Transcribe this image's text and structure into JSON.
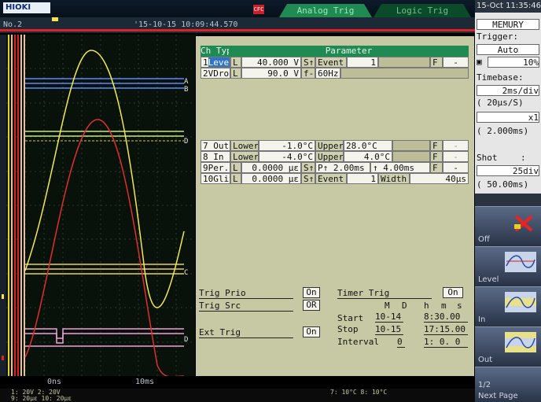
{
  "header": {
    "logo": "HIOKI",
    "record_badge": "CFC",
    "tabs": [
      "Analog Trig",
      "Logic Trig"
    ],
    "channel_no": "No.2",
    "trigger_time": "'15-10-15 10:09:44.570",
    "datetime": "15-Oct 11:35:46"
  },
  "panel": {
    "col_headers": {
      "ch": "Ch",
      "type": "Type",
      "parameter": "Parameter"
    },
    "rows": [
      {
        "ch": "1",
        "type": "Level",
        "f": "L",
        "v1": "40.000 V",
        "mark": "S↑",
        "k2": "Event",
        "v2": "1",
        "flag": "F",
        "end": "-"
      },
      {
        "ch": "2",
        "type": "VDrop",
        "f": "L",
        "v1": "90.0 V",
        "mark": "f-",
        "k2": "60Hz",
        "v2": "",
        "flag": "",
        "end": ""
      },
      {
        "ch": "7",
        "type": "Out",
        "f": "Lower",
        "v1": "-1.0°C",
        "mark": "",
        "k2": "Upper",
        "v2": "28.0°C",
        "flag": "F",
        "end": "-"
      },
      {
        "ch": "8",
        "type": "In",
        "f": "Lower",
        "v1": "-4.0°C",
        "mark": "",
        "k2": "Upper",
        "v2": "4.0°C",
        "flag": "F",
        "end": "-"
      },
      {
        "ch": "9",
        "type": "Per.",
        "f": "L",
        "v1": "0.0000 με",
        "mark": "S↑",
        "k2": "P↑ 2.00ms",
        "v2": "↑ 4.00ms",
        "flag": "F",
        "end": "-"
      },
      {
        "ch": "10",
        "type": "Glit.",
        "f": "L",
        "v1": "0.0000 με",
        "mark": "S↑",
        "k2": "Event",
        "v2": "1",
        "k3": "Width",
        "v3": "40μs",
        "flag": "",
        "end": ""
      }
    ],
    "trig_prio": {
      "label": "Trig Prio",
      "value": "On"
    },
    "trig_src": {
      "label": "Trig Src",
      "value": "OR"
    },
    "ext_trig": {
      "label": "Ext Trig",
      "value": "On"
    },
    "timer_trig": {
      "label": "Timer Trig",
      "value": "On"
    },
    "timer_cols": [
      "M",
      "D",
      "h",
      "m",
      "s"
    ],
    "start": {
      "label": "Start",
      "md": "10-14",
      "hms": "8:30.00"
    },
    "stop": {
      "label": "Stop",
      "md": "10-15",
      "hms": "17:15.00"
    },
    "interval": {
      "label": "Interval",
      "d": "0",
      "hms": "1: 0. 0"
    }
  },
  "waveform": {
    "markers": [
      "A",
      "B",
      "D",
      "C",
      "D"
    ],
    "time_labels": [
      "0ns",
      "10ms"
    ],
    "footer_left": "1: 20V   2: 20V",
    "footer_left2": "9: 20με  10: 20με",
    "footer_right": "7: 10°C   8: 10°C"
  },
  "sidebar": {
    "mode": "MEMURY",
    "trigger_label": "Trigger:",
    "trigger_value": "Auto",
    "trigger_pct": "10%",
    "timebase_label": "Timebase:",
    "timebase_value": "2ms/div",
    "sample": "( 20μs/S)",
    "mult": "x1",
    "range": "( 2.000ms)",
    "shot_label": "Shot",
    "shot_colon": ":",
    "shot_value": "25div",
    "shot_range": "( 50.00ms)",
    "softkeys": [
      "Off",
      "Level",
      "In",
      "Out"
    ],
    "page": "1/2",
    "next_page": "Next Page"
  },
  "colors": {
    "accent": "#1f8a52",
    "selected": "#2e74c9",
    "panel_bg": "#c7c9a4"
  }
}
